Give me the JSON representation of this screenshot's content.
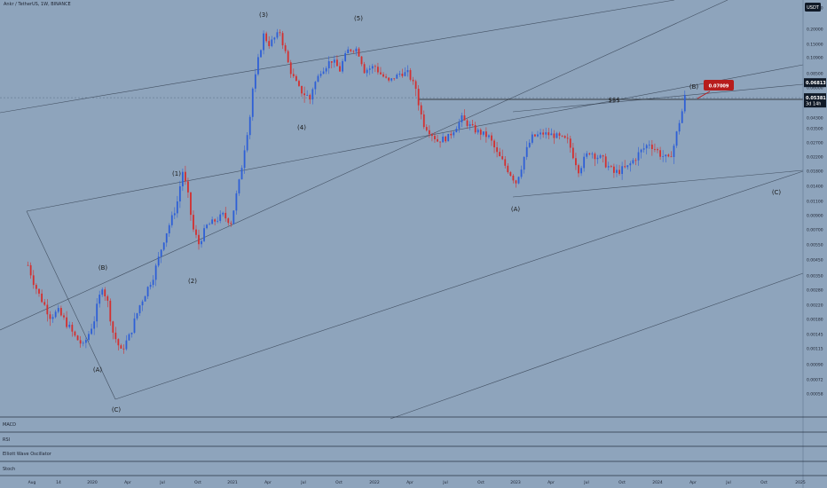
{
  "header": {
    "title": "Ankr / TetherUS, 1W, BINANCE",
    "currency_button": "USDT"
  },
  "colors": {
    "background": "#8ea4bc",
    "up": "#2e5fd6",
    "down": "#d32f2f",
    "line": "#2a3444",
    "badge_red": "#b71c1c",
    "badge_dark": "#101a28"
  },
  "price_axis": {
    "ticks": [
      "0.28000",
      "0.20000",
      "0.15000",
      "0.10900",
      "0.08500",
      "0.06000",
      "0.04300",
      "0.03500",
      "0.02700",
      "0.02200",
      "0.01800",
      "0.01400",
      "0.01100",
      "0.00900",
      "0.00700",
      "0.00550",
      "0.00450",
      "0.00350",
      "0.00280",
      "0.00220",
      "0.00180",
      "0.00145",
      "0.00115",
      "0.00090",
      "0.00072",
      "0.00058"
    ],
    "badges": [
      {
        "label": "0.06813",
        "sub": "",
        "style": "dark"
      },
      {
        "label": "0.05381",
        "sub": "3d 14h",
        "style": "dark"
      },
      {
        "label": "0.07009",
        "sub": "",
        "style": "red"
      }
    ]
  },
  "time_axis": {
    "ticks": [
      "Aug",
      "14",
      "2020",
      "Apr",
      "Jul",
      "Oct",
      "2021",
      "Apr",
      "Jul",
      "Oct",
      "2022",
      "Apr",
      "Jul",
      "Oct",
      "2023",
      "Apr",
      "Jul",
      "Oct",
      "2024",
      "Apr",
      "Jul",
      "Oct",
      "2025"
    ]
  },
  "annotations": {
    "waves": [
      "(3)",
      "(5)",
      "(4)",
      "(1)",
      "(2)",
      "(B)",
      "(A)",
      "(C)",
      "(A)",
      "(B)",
      "(C)"
    ],
    "liquidity_label": "$$$"
  },
  "panels": [
    "MACD",
    "RSI",
    "Elliott Wave Oscillator",
    "Stoch"
  ],
  "chart_data": {
    "type": "candlestick",
    "title": "Ankr / TetherUS, 1W, BINANCE",
    "yscale": "log",
    "ylim": [
      0.00058,
      0.28
    ],
    "x_range": [
      "2019-07",
      "2025-01"
    ],
    "trace": [
      [
        "2019-07-22",
        0.00415
      ],
      [
        "2019-08-05",
        0.0032
      ],
      [
        "2019-08-19",
        0.0026
      ],
      [
        "2019-09-02",
        0.0022
      ],
      [
        "2019-09-16",
        0.0019
      ],
      [
        "2019-10-07",
        0.002
      ],
      [
        "2019-10-28",
        0.0017
      ],
      [
        "2019-11-18",
        0.0014
      ],
      [
        "2019-12-09",
        0.0012
      ],
      [
        "2020-01-06",
        0.0018
      ],
      [
        "2020-01-27",
        0.003
      ],
      [
        "2020-02-10",
        0.0023
      ],
      [
        "2020-02-24",
        0.0015
      ],
      [
        "2020-03-16",
        0.0011
      ],
      [
        "2020-04-06",
        0.0014
      ],
      [
        "2020-05-04",
        0.0022
      ],
      [
        "2020-06-08",
        0.0035
      ],
      [
        "2020-07-06",
        0.006
      ],
      [
        "2020-08-10",
        0.011
      ],
      [
        "2020-08-24",
        0.018
      ],
      [
        "2020-09-07",
        0.012
      ],
      [
        "2020-09-21",
        0.007
      ],
      [
        "2020-10-05",
        0.0056
      ],
      [
        "2020-10-26",
        0.0075
      ],
      [
        "2020-12-07",
        0.009
      ],
      [
        "2020-12-28",
        0.008
      ],
      [
        "2021-01-18",
        0.015
      ],
      [
        "2021-02-08",
        0.033
      ],
      [
        "2021-03-01",
        0.08
      ],
      [
        "2021-03-22",
        0.18
      ],
      [
        "2021-04-05",
        0.15
      ],
      [
        "2021-05-03",
        0.19
      ],
      [
        "2021-05-24",
        0.1
      ],
      [
        "2021-06-21",
        0.06
      ],
      [
        "2021-07-19",
        0.053
      ],
      [
        "2021-08-16",
        0.09
      ],
      [
        "2021-09-13",
        0.105
      ],
      [
        "2021-10-04",
        0.09
      ],
      [
        "2021-10-25",
        0.13
      ],
      [
        "2021-11-15",
        0.135
      ],
      [
        "2021-12-06",
        0.09
      ],
      [
        "2022-01-03",
        0.095
      ],
      [
        "2022-02-07",
        0.07
      ],
      [
        "2022-03-07",
        0.085
      ],
      [
        "2022-03-28",
        0.085
      ],
      [
        "2022-04-18",
        0.06
      ],
      [
        "2022-05-09",
        0.038
      ],
      [
        "2022-06-13",
        0.028
      ],
      [
        "2022-07-11",
        0.03
      ],
      [
        "2022-08-15",
        0.042
      ],
      [
        "2022-09-19",
        0.034
      ],
      [
        "2022-10-24",
        0.03
      ],
      [
        "2022-11-14",
        0.023
      ],
      [
        "2022-12-12",
        0.0185
      ],
      [
        "2023-01-02",
        0.015
      ],
      [
        "2023-01-23",
        0.022
      ],
      [
        "2023-02-13",
        0.03
      ],
      [
        "2023-03-13",
        0.032
      ],
      [
        "2023-04-10",
        0.031
      ],
      [
        "2023-05-15",
        0.028
      ],
      [
        "2023-06-12",
        0.0185
      ],
      [
        "2023-07-10",
        0.024
      ],
      [
        "2023-08-14",
        0.021
      ],
      [
        "2023-09-11",
        0.0175
      ],
      [
        "2023-10-16",
        0.019
      ],
      [
        "2023-11-13",
        0.023
      ],
      [
        "2023-12-11",
        0.027
      ],
      [
        "2024-01-08",
        0.023
      ],
      [
        "2024-01-29",
        0.021
      ],
      [
        "2024-02-12",
        0.026
      ],
      [
        "2024-02-26",
        0.04
      ],
      [
        "2024-03-11",
        0.0538
      ]
    ],
    "levels": {
      "horizontal": 0.06813,
      "last": 0.05381,
      "target": 0.07009
    },
    "panels": [
      "MACD",
      "RSI",
      "Elliott Wave Oscillator",
      "Stoch"
    ]
  }
}
